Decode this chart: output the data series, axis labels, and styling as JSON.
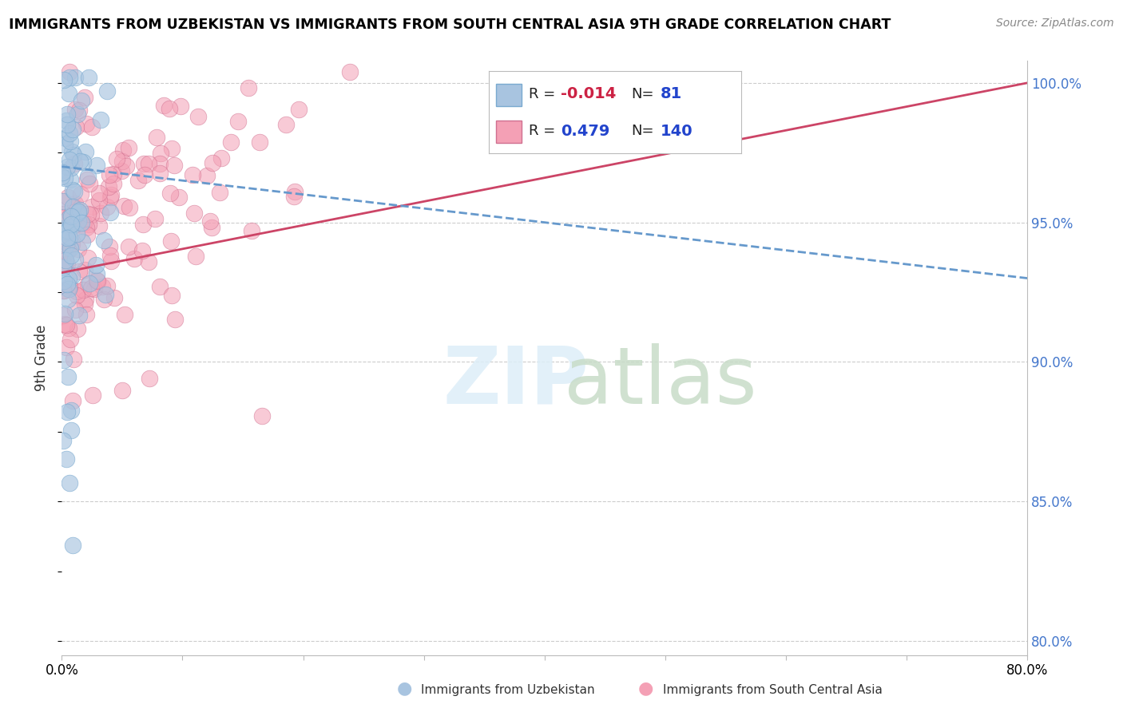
{
  "title": "IMMIGRANTS FROM UZBEKISTAN VS IMMIGRANTS FROM SOUTH CENTRAL ASIA 9TH GRADE CORRELATION CHART",
  "source": "Source: ZipAtlas.com",
  "ylabel": "9th Grade",
  "legend_label1": "Immigrants from Uzbekistan",
  "legend_label2": "Immigrants from South Central Asia",
  "r1": -0.014,
  "n1": 81,
  "r2": 0.479,
  "n2": 140,
  "color1": "#a8c4e0",
  "color2": "#f4a0b5",
  "line_color1": "#6699cc",
  "line_color2": "#cc4466",
  "xlim": [
    0.0,
    0.8
  ],
  "ylim": [
    0.795,
    1.008
  ],
  "right_yticks": [
    0.8,
    0.85,
    0.9,
    0.95,
    1.0
  ],
  "right_ytick_labels": [
    "80.0%",
    "85.0%",
    "90.0%",
    "95.0%",
    "100.0%"
  ],
  "xticks": [
    0.0,
    0.1,
    0.2,
    0.3,
    0.4,
    0.5,
    0.6,
    0.7,
    0.8
  ],
  "xtick_labels": [
    "0.0%",
    "",
    "",
    "",
    "",
    "",
    "",
    "",
    "80.0%"
  ]
}
